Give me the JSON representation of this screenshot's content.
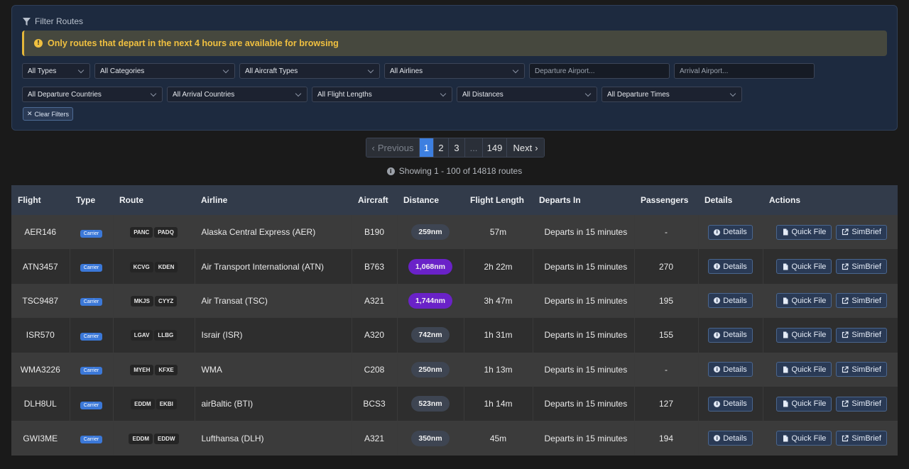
{
  "filters": {
    "heading": "Filter Routes",
    "alert": "Only routes that depart in the next 4 hours are available for browsing",
    "row1": [
      "All Types",
      "All Categories",
      "All Aircraft Types",
      "All Airlines"
    ],
    "departure_placeholder": "Departure Airport...",
    "arrival_placeholder": "Arrival Airport...",
    "row2": [
      "All Departure Countries",
      "All Arrival Countries",
      "All Flight Lengths",
      "All Distances",
      "All Departure Times"
    ],
    "clear_label": "Clear Filters"
  },
  "pagination": {
    "previous": "Previous",
    "pages": [
      "1",
      "2",
      "3"
    ],
    "dots": "...",
    "last": "149",
    "next": "Next",
    "showing": "Showing 1 - 100 of 14818 routes"
  },
  "table": {
    "headers": [
      "Flight",
      "Type",
      "Route",
      "Airline",
      "Aircraft",
      "Distance",
      "Flight Length",
      "Departs In",
      "Passengers",
      "Details",
      "Actions"
    ],
    "buttons": {
      "details": "Details",
      "quick_file": "Quick File",
      "simbrief": "SimBrief"
    },
    "rows": [
      {
        "flight": "AER146",
        "type": "Carrier",
        "dep": "PANC",
        "arr": "PADQ",
        "airline": "Alaska Central Express (AER)",
        "aircraft": "B190",
        "distance": "259nm",
        "length": "57m",
        "departs": "Departs in 15 minutes",
        "passengers": "-"
      },
      {
        "flight": "ATN3457",
        "type": "Carrier",
        "dep": "KCVG",
        "arr": "KDEN",
        "airline": "Air Transport International (ATN)",
        "aircraft": "B763",
        "distance": "1,068nm",
        "length": "2h 22m",
        "departs": "Departs in 15 minutes",
        "passengers": "270"
      },
      {
        "flight": "TSC9487",
        "type": "Carrier",
        "dep": "MKJS",
        "arr": "CYYZ",
        "airline": "Air Transat (TSC)",
        "aircraft": "A321",
        "distance": "1,744nm",
        "length": "3h 47m",
        "departs": "Departs in 15 minutes",
        "passengers": "195"
      },
      {
        "flight": "ISR570",
        "type": "Carrier",
        "dep": "LGAV",
        "arr": "LLBG",
        "airline": "Israir (ISR)",
        "aircraft": "A320",
        "distance": "742nm",
        "length": "1h 31m",
        "departs": "Departs in 15 minutes",
        "passengers": "155"
      },
      {
        "flight": "WMA3226",
        "type": "Carrier",
        "dep": "MYEH",
        "arr": "KFXE",
        "airline": "WMA",
        "aircraft": "C208",
        "distance": "250nm",
        "length": "1h 13m",
        "departs": "Departs in 15 minutes",
        "passengers": "-"
      },
      {
        "flight": "DLH8UL",
        "type": "Carrier",
        "dep": "EDDM",
        "arr": "EKBI",
        "airline": "airBaltic (BTI)",
        "aircraft": "BCS3",
        "distance": "523nm",
        "length": "1h 14m",
        "departs": "Departs in 15 minutes",
        "passengers": "127"
      },
      {
        "flight": "GWI3ME",
        "type": "Carrier",
        "dep": "EDDM",
        "arr": "EDDW",
        "airline": "Lufthansa (DLH)",
        "aircraft": "A321",
        "distance": "350nm",
        "length": "45m",
        "departs": "Departs in 15 minutes",
        "passengers": "194"
      }
    ]
  },
  "colors": {
    "accent": "#3d7fe0",
    "alert": "#f0c040",
    "long_distance": "#6a22c8"
  }
}
